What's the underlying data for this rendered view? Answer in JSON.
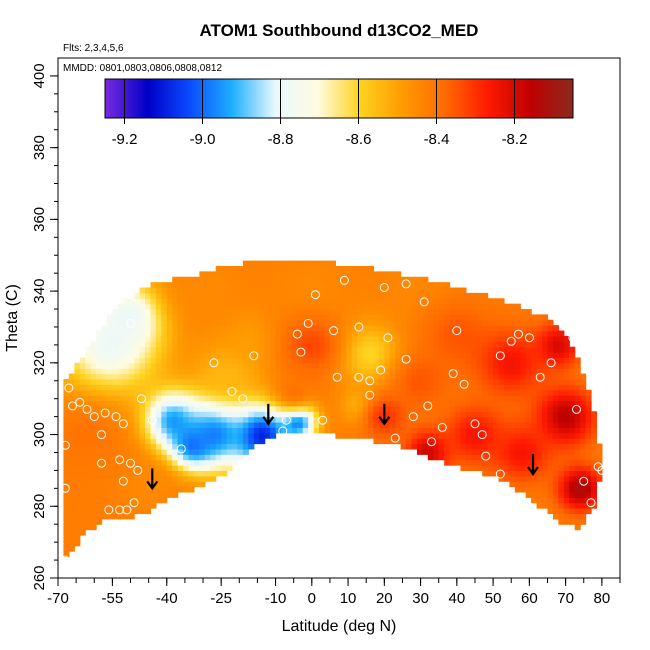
{
  "chart_data": {
    "type": "heatmap",
    "title": "ATOM1 Southbound d13CO2_MED",
    "annotations": {
      "flights": "Flts: 2,3,4,5,6",
      "dates": "MMDD: 0801,0803,0806,0808,0812"
    },
    "xlabel": "Latitude (deg N)",
    "ylabel": "Theta (C)",
    "xlim": [
      -70,
      85
    ],
    "ylim": [
      260,
      405
    ],
    "x_ticks": [
      -70,
      -55,
      -40,
      -25,
      -10,
      0,
      10,
      20,
      30,
      40,
      50,
      60,
      70,
      80
    ],
    "x_tick_labels": [
      "-70",
      "-55",
      "-40",
      "-25",
      "-10",
      "0",
      "10",
      "20",
      "30",
      "40",
      "50",
      "60",
      "70",
      "80"
    ],
    "y_ticks": [
      260,
      280,
      300,
      320,
      340,
      360,
      380,
      400
    ],
    "y_tick_labels": [
      "260",
      "280",
      "300",
      "320",
      "340",
      "360",
      "380",
      "400"
    ],
    "colorbar": {
      "min": -9.25,
      "max": -8.05,
      "ticks": [
        -9.2,
        -9.0,
        -8.8,
        -8.6,
        -8.4,
        -8.2
      ],
      "tick_labels": [
        "-9.2",
        "-9.0",
        "-8.8",
        "-8.6",
        "-8.4",
        "-8.2"
      ],
      "colors": [
        "#7a2ae0",
        "#0000c8",
        "#0a4cff",
        "#1fb0ff",
        "#e8f8ff",
        "#fffce0",
        "#ffd21e",
        "#ff9a00",
        "#ff6a00",
        "#ff1a00",
        "#c00000",
        "#8b2a20"
      ]
    },
    "domain_boundary": {
      "upper": [
        [
          -69,
          314
        ],
        [
          -63,
          322
        ],
        [
          -58,
          330
        ],
        [
          -54,
          336
        ],
        [
          -49,
          339
        ],
        [
          -44,
          342
        ],
        [
          -34,
          344
        ],
        [
          -24,
          347
        ],
        [
          -12,
          349
        ],
        [
          -4,
          349
        ],
        [
          4,
          348
        ],
        [
          14,
          347
        ],
        [
          24,
          345
        ],
        [
          34,
          343
        ],
        [
          44,
          340
        ],
        [
          54,
          337
        ],
        [
          64,
          333
        ],
        [
          70,
          328
        ],
        [
          74,
          320
        ],
        [
          77,
          310
        ],
        [
          79,
          300
        ],
        [
          80,
          290
        ]
      ],
      "lower": [
        [
          80,
          290
        ],
        [
          78,
          280
        ],
        [
          74,
          274
        ],
        [
          68,
          276
        ],
        [
          60,
          282
        ],
        [
          54,
          287
        ],
        [
          44,
          290
        ],
        [
          34,
          293
        ],
        [
          24,
          297
        ],
        [
          14,
          299
        ],
        [
          4,
          300
        ],
        [
          -7,
          301
        ],
        [
          -14,
          298
        ],
        [
          -22,
          290
        ],
        [
          -32,
          285
        ],
        [
          -40,
          282
        ],
        [
          -46,
          278
        ],
        [
          -52,
          276
        ],
        [
          -58,
          276
        ],
        [
          -63,
          272
        ],
        [
          -69,
          264
        ]
      ]
    },
    "field_centers": [
      {
        "lat": -56,
        "theta": 325,
        "value": -8.78,
        "radius": 14
      },
      {
        "lat": -50,
        "theta": 333,
        "value": -8.8,
        "radius": 9
      },
      {
        "lat": -14,
        "theta": 300,
        "value": -9.12,
        "radius": 9
      },
      {
        "lat": -27,
        "theta": 301,
        "value": -9.0,
        "radius": 10
      },
      {
        "lat": -38,
        "theta": 304,
        "value": -8.95,
        "radius": 8
      },
      {
        "lat": -33,
        "theta": 297,
        "value": -9.0,
        "radius": 6
      },
      {
        "lat": -4,
        "theta": 304,
        "value": -9.05,
        "radius": 5
      },
      {
        "lat": 16,
        "theta": 323,
        "value": -8.62,
        "radius": 9
      },
      {
        "lat": 13,
        "theta": 308,
        "value": -8.55,
        "radius": 5
      },
      {
        "lat": -23,
        "theta": 318,
        "value": -8.55,
        "radius": 10
      },
      {
        "lat": -18,
        "theta": 327,
        "value": -8.5,
        "radius": 8
      },
      {
        "lat": -28,
        "theta": 340,
        "value": -8.45,
        "radius": 12
      },
      {
        "lat": 0,
        "theta": 340,
        "value": -8.45,
        "radius": 12
      },
      {
        "lat": 30,
        "theta": 340,
        "value": -8.45,
        "radius": 12
      },
      {
        "lat": 0,
        "theta": 325,
        "value": -8.33,
        "radius": 8
      },
      {
        "lat": -5,
        "theta": 312,
        "value": -8.4,
        "radius": 6
      },
      {
        "lat": -62,
        "theta": 300,
        "value": -8.4,
        "radius": 10
      },
      {
        "lat": -58,
        "theta": 280,
        "value": -8.42,
        "radius": 10
      },
      {
        "lat": -45,
        "theta": 285,
        "value": -8.45,
        "radius": 8
      },
      {
        "lat": 40,
        "theta": 328,
        "value": -8.35,
        "radius": 10
      },
      {
        "lat": 30,
        "theta": 315,
        "value": -8.35,
        "radius": 8
      },
      {
        "lat": 32,
        "theta": 295,
        "value": -8.18,
        "radius": 6
      },
      {
        "lat": 45,
        "theta": 300,
        "value": -8.25,
        "radius": 8
      },
      {
        "lat": 55,
        "theta": 320,
        "value": -8.25,
        "radius": 9
      },
      {
        "lat": 68,
        "theta": 325,
        "value": -8.2,
        "radius": 6
      },
      {
        "lat": 70,
        "theta": 305,
        "value": -8.15,
        "radius": 8
      },
      {
        "lat": 74,
        "theta": 285,
        "value": -8.12,
        "radius": 6
      },
      {
        "lat": 58,
        "theta": 295,
        "value": -8.25,
        "radius": 8
      },
      {
        "lat": 20,
        "theta": 305,
        "value": -8.3,
        "radius": 6
      }
    ],
    "default_value": -8.42,
    "observation_points": [
      [
        -67,
        313
      ],
      [
        -66,
        308
      ],
      [
        -68,
        297
      ],
      [
        -68,
        285
      ],
      [
        -68,
        265
      ],
      [
        -64,
        309
      ],
      [
        -62,
        307
      ],
      [
        -60,
        305
      ],
      [
        -57,
        306
      ],
      [
        -54,
        305
      ],
      [
        -52,
        303
      ],
      [
        -58,
        300
      ],
      [
        -58,
        292
      ],
      [
        -53,
        293
      ],
      [
        -50,
        292
      ],
      [
        -48,
        290
      ],
      [
        -52,
        287
      ],
      [
        -53,
        279
      ],
      [
        -51,
        279
      ],
      [
        -49,
        281
      ],
      [
        -56,
        279
      ],
      [
        -47,
        310
      ],
      [
        -44,
        304
      ],
      [
        -50,
        339
      ],
      [
        -50,
        331
      ],
      [
        -36,
        296
      ],
      [
        -27,
        320
      ],
      [
        -22,
        312
      ],
      [
        -19,
        310
      ],
      [
        -16,
        322
      ],
      [
        -8,
        301
      ],
      [
        -7,
        304
      ],
      [
        -3,
        323
      ],
      [
        -4,
        328
      ],
      [
        -1,
        331
      ],
      [
        1,
        339
      ],
      [
        3,
        304
      ],
      [
        6,
        329
      ],
      [
        7,
        316
      ],
      [
        9,
        343
      ],
      [
        13,
        330
      ],
      [
        13,
        316
      ],
      [
        16,
        315
      ],
      [
        16,
        311
      ],
      [
        19,
        318
      ],
      [
        20,
        341
      ],
      [
        21,
        327
      ],
      [
        23,
        299
      ],
      [
        26,
        342
      ],
      [
        26,
        321
      ],
      [
        28,
        305
      ],
      [
        31,
        337
      ],
      [
        32,
        308
      ],
      [
        33,
        298
      ],
      [
        35,
        291
      ],
      [
        36,
        302
      ],
      [
        39,
        317
      ],
      [
        40,
        329
      ],
      [
        42,
        314
      ],
      [
        45,
        303
      ],
      [
        47,
        300
      ],
      [
        48,
        294
      ],
      [
        52,
        289
      ],
      [
        52,
        322
      ],
      [
        55,
        326
      ],
      [
        57,
        328
      ],
      [
        60,
        327
      ],
      [
        63,
        316
      ],
      [
        66,
        320
      ],
      [
        72,
        327
      ],
      [
        73,
        307
      ],
      [
        75,
        287
      ],
      [
        77,
        281
      ],
      [
        78,
        272
      ],
      [
        79,
        291
      ],
      [
        80,
        290
      ]
    ],
    "arrows": [
      {
        "lat": -44,
        "theta": 285
      },
      {
        "lat": -12,
        "theta": 303
      },
      {
        "lat": 20,
        "theta": 303
      },
      {
        "lat": 61,
        "theta": 289
      }
    ]
  }
}
